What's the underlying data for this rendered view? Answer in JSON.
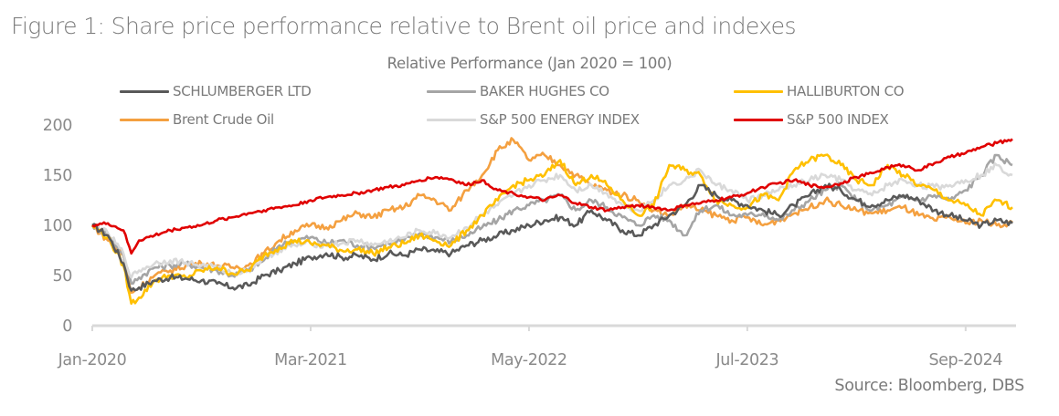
{
  "title": "Figure 1: Share price performance relative to Brent oil price and indexes",
  "source": "Source: Bloomberg, DBS",
  "chart_data": {
    "type": "line",
    "title": "Relative Performance (Jan 2020 = 100)",
    "xlabel": "",
    "ylabel": "",
    "ylim": [
      0,
      200
    ],
    "yticks": [
      0,
      50,
      100,
      150,
      200
    ],
    "xticks": [
      "Jan-2020",
      "Mar-2021",
      "May-2022",
      "Jul-2023",
      "Sep-2024"
    ],
    "xtick_months": [
      0,
      14,
      28,
      42,
      56
    ],
    "x_unit": "months since Jan-2020",
    "xlim": [
      0,
      59
    ],
    "grid": false,
    "legend": "top",
    "x": [
      0,
      1,
      2,
      2.5,
      3,
      4,
      5,
      6,
      7,
      8,
      9,
      10,
      11,
      12,
      13,
      14,
      15,
      16,
      17,
      18,
      19,
      20,
      21,
      22,
      23,
      24,
      25,
      26,
      27,
      28,
      29,
      30,
      31,
      32,
      33,
      34,
      35,
      36,
      37,
      38,
      39,
      40,
      41,
      42,
      43,
      44,
      45,
      46,
      47,
      48,
      49,
      50,
      51,
      52,
      53,
      54,
      55,
      56,
      57,
      58,
      59
    ],
    "series": [
      {
        "name": "SCHLUMBERGER LTD",
        "color": "#595959",
        "values": [
          100,
          90,
          62,
          35,
          38,
          45,
          48,
          47,
          45,
          42,
          38,
          40,
          50,
          55,
          62,
          68,
          72,
          68,
          70,
          66,
          72,
          70,
          76,
          74,
          72,
          80,
          85,
          90,
          95,
          100,
          105,
          108,
          100,
          115,
          105,
          95,
          90,
          100,
          110,
          120,
          140,
          130,
          125,
          120,
          115,
          110,
          120,
          130,
          140,
          135,
          125,
          120,
          125,
          130,
          125,
          115,
          110,
          105,
          100,
          105,
          102
        ]
      },
      {
        "name": "BAKER HUGHES CO",
        "color": "#a5a5a5",
        "values": [
          100,
          92,
          70,
          42,
          48,
          58,
          60,
          62,
          58,
          55,
          50,
          55,
          65,
          80,
          85,
          88,
          82,
          85,
          80,
          78,
          82,
          85,
          92,
          88,
          84,
          90,
          98,
          105,
          115,
          120,
          125,
          130,
          115,
          125,
          118,
          108,
          100,
          110,
          105,
          90,
          115,
          120,
          110,
          110,
          112,
          105,
          115,
          125,
          135,
          140,
          125,
          115,
          120,
          128,
          125,
          130,
          125,
          135,
          150,
          170,
          160
        ]
      },
      {
        "name": "HALLIBURTON CO",
        "color": "#ffc000",
        "values": [
          100,
          88,
          60,
          22,
          28,
          45,
          50,
          48,
          55,
          58,
          52,
          55,
          70,
          78,
          85,
          82,
          80,
          75,
          76,
          72,
          78,
          82,
          90,
          85,
          80,
          95,
          110,
          125,
          140,
          145,
          150,
          165,
          140,
          150,
          140,
          125,
          110,
          120,
          160,
          155,
          150,
          125,
          120,
          118,
          130,
          125,
          155,
          165,
          170,
          160,
          145,
          140,
          160,
          150,
          140,
          135,
          125,
          120,
          110,
          125,
          118
        ]
      },
      {
        "name": "Brent Crude Oil",
        "color": "#f4a040",
        "values": [
          100,
          85,
          70,
          33,
          38,
          50,
          55,
          60,
          62,
          60,
          58,
          60,
          72,
          85,
          95,
          100,
          98,
          105,
          112,
          108,
          115,
          118,
          130,
          125,
          115,
          135,
          150,
          175,
          185,
          165,
          170,
          160,
          150,
          140,
          135,
          130,
          125,
          115,
          110,
          120,
          115,
          110,
          105,
          108,
          100,
          105,
          112,
          118,
          125,
          120,
          115,
          112,
          115,
          118,
          110,
          105,
          108,
          102,
          105,
          100,
          103
        ]
      },
      {
        "name": "S&P 500 ENERGY INDEX",
        "color": "#d9d9d9",
        "values": [
          100,
          92,
          72,
          48,
          55,
          62,
          65,
          63,
          60,
          58,
          52,
          55,
          68,
          75,
          80,
          82,
          80,
          82,
          85,
          80,
          84,
          88,
          95,
          92,
          88,
          98,
          110,
          120,
          130,
          140,
          145,
          150,
          135,
          140,
          132,
          120,
          115,
          125,
          140,
          145,
          155,
          140,
          135,
          125,
          130,
          135,
          140,
          145,
          150,
          145,
          135,
          130,
          140,
          145,
          140,
          138,
          140,
          145,
          150,
          160,
          150
        ]
      },
      {
        "name": "S&P 500 INDEX",
        "color": "#e00000",
        "values": [
          100,
          102,
          95,
          72,
          85,
          90,
          95,
          98,
          100,
          105,
          108,
          112,
          115,
          118,
          120,
          125,
          128,
          130,
          132,
          135,
          138,
          140,
          145,
          148,
          146,
          140,
          145,
          135,
          132,
          128,
          125,
          130,
          122,
          118,
          115,
          118,
          120,
          118,
          115,
          120,
          122,
          125,
          128,
          132,
          138,
          142,
          145,
          140,
          138,
          142,
          148,
          152,
          158,
          160,
          155,
          162,
          168,
          172,
          178,
          182,
          186
        ]
      }
    ]
  }
}
